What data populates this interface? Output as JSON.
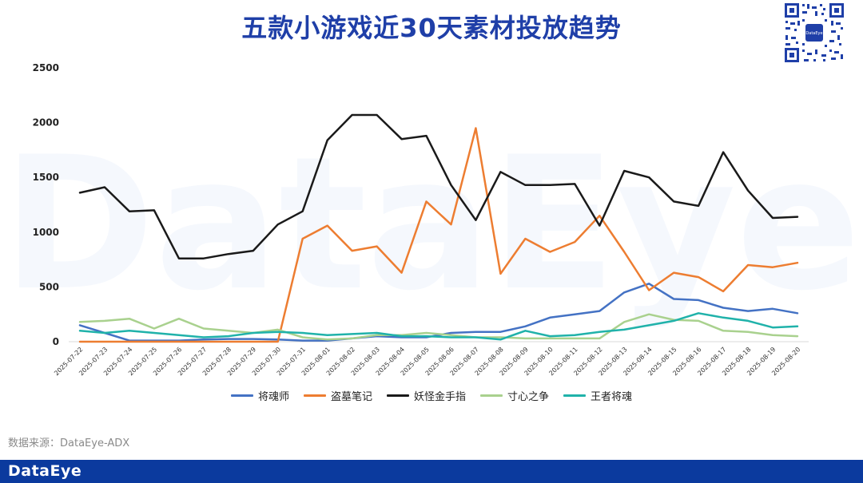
{
  "header": {
    "title": "五款小游戏近30天素材投放趋势"
  },
  "source": {
    "text": "数据来源：DataEye-ADX"
  },
  "footer": {
    "logo": "DataEye",
    "bar_color": "#0b3a9e"
  },
  "watermark": {
    "text": "DataEye"
  },
  "qr": {
    "center_text": "DataEye"
  },
  "chart_data": {
    "type": "line",
    "title": "五款小游戏近30天素材投放趋势",
    "xlabel": "",
    "ylabel": "",
    "ylim": [
      0,
      2500
    ],
    "yticks": [
      0,
      500,
      1000,
      1500,
      2000,
      2500
    ],
    "grid": false,
    "legend_position": "bottom",
    "x": [
      "2025-07-22",
      "2025-07-23",
      "2025-07-24",
      "2025-07-25",
      "2025-07-26",
      "2025-07-27",
      "2025-07-28",
      "2025-07-29",
      "2025-07-30",
      "2025-07-31",
      "2025-08-01",
      "2025-08-02",
      "2025-08-03",
      "2025-08-04",
      "2025-08-05",
      "2025-08-06",
      "2025-08-07",
      "2025-08-08",
      "2025-08-09",
      "2025-08-10",
      "2025-08-11",
      "2025-08-12",
      "2025-08-13",
      "2025-08-14",
      "2025-08-15",
      "2025-08-16",
      "2025-08-17",
      "2025-08-18",
      "2025-08-19",
      "2025-08-20"
    ],
    "series": [
      {
        "name": "将魂师",
        "color": "#4472c4",
        "values": [
          150,
          80,
          10,
          10,
          10,
          20,
          25,
          25,
          20,
          10,
          10,
          30,
          50,
          40,
          40,
          80,
          90,
          90,
          140,
          220,
          250,
          280,
          450,
          530,
          390,
          380,
          310,
          280,
          300,
          260
        ]
      },
      {
        "name": "盗墓笔记",
        "color": "#ed7d31",
        "values": [
          0,
          0,
          0,
          0,
          0,
          0,
          0,
          0,
          0,
          940,
          1060,
          830,
          870,
          630,
          1280,
          1070,
          1950,
          620,
          940,
          820,
          910,
          1150,
          820,
          470,
          630,
          590,
          460,
          700,
          680,
          720
        ]
      },
      {
        "name": "妖怪金手指",
        "color": "#1a1a1a",
        "values": [
          1360,
          1410,
          1190,
          1200,
          760,
          760,
          800,
          830,
          1070,
          1190,
          1840,
          2070,
          2070,
          1850,
          1880,
          1430,
          1110,
          1550,
          1430,
          1430,
          1440,
          1060,
          1560,
          1500,
          1280,
          1240,
          1730,
          1380,
          1130,
          1140
        ]
      },
      {
        "name": "寸心之争",
        "color": "#a9d18e",
        "values": [
          180,
          190,
          210,
          120,
          210,
          120,
          100,
          80,
          110,
          40,
          20,
          30,
          60,
          60,
          80,
          60,
          40,
          40,
          30,
          30,
          30,
          30,
          180,
          250,
          200,
          190,
          100,
          90,
          60,
          50
        ]
      },
      {
        "name": "王者将魂",
        "color": "#20b2aa",
        "values": [
          100,
          80,
          100,
          80,
          60,
          40,
          50,
          80,
          90,
          80,
          60,
          70,
          80,
          50,
          50,
          40,
          40,
          20,
          100,
          50,
          60,
          90,
          110,
          150,
          190,
          260,
          220,
          190,
          130,
          140
        ]
      }
    ]
  }
}
